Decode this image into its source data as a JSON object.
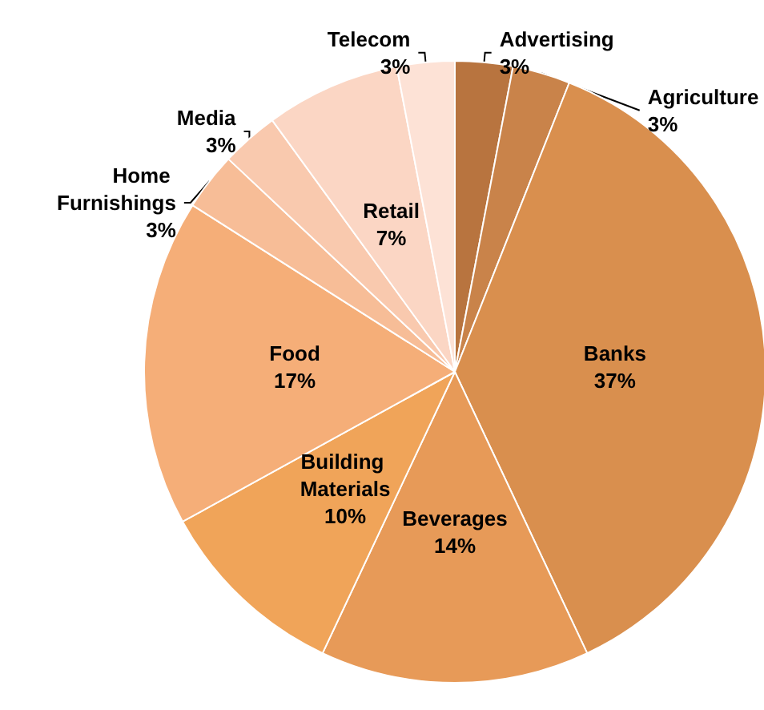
{
  "chart_data": {
    "type": "pie",
    "categories": [
      "Advertising",
      "Agriculture",
      "Banks",
      "Beverages",
      "Building Materials",
      "Food",
      "Home Furnishings",
      "Media",
      "Retail",
      "Telecom"
    ],
    "values": [
      3,
      3,
      37,
      14,
      10,
      17,
      3,
      3,
      7,
      3
    ],
    "value_labels": [
      "3%",
      "3%",
      "37%",
      "14%",
      "10%",
      "17%",
      "3%",
      "3%",
      "7%",
      "3%"
    ],
    "colors": [
      "#b8743f",
      "#c9834a",
      "#d98f4e",
      "#e79a58",
      "#f0a459",
      "#f5ae78",
      "#f7bd97",
      "#f9c9ae",
      "#fbd6c4",
      "#fde2d6"
    ],
    "legend": false
  }
}
